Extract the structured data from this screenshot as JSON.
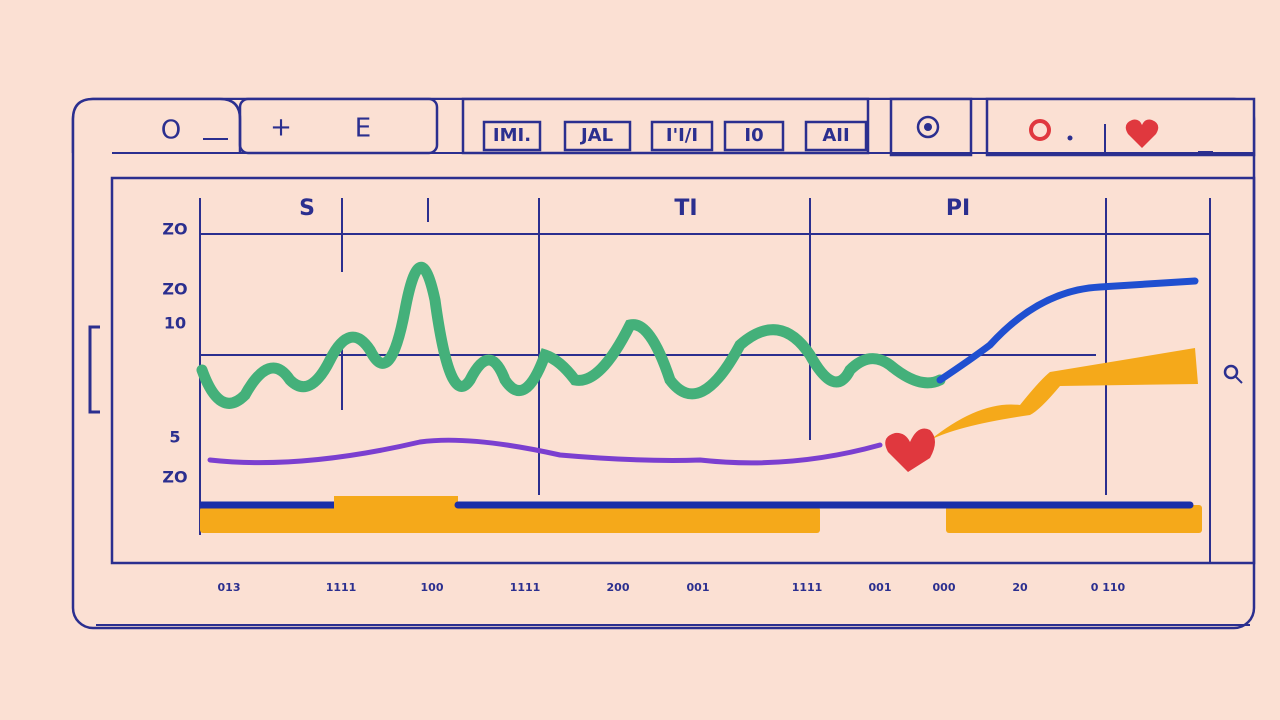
{
  "toolbar": {
    "buttons": [
      "O",
      "+",
      "E"
    ]
  },
  "tabs": [
    "IMI.",
    "JAL",
    "I'I/I",
    "I0",
    "AII"
  ],
  "chart": {
    "headers": [
      "S",
      "TI",
      "PI"
    ],
    "y_labels": [
      "ZO",
      "ZO",
      "10",
      "5",
      "ZO"
    ],
    "x_labels": [
      "013",
      "1111",
      "100",
      "1111",
      "200",
      "001",
      "1111",
      "001",
      "000",
      "20",
      "0 110"
    ]
  }
}
